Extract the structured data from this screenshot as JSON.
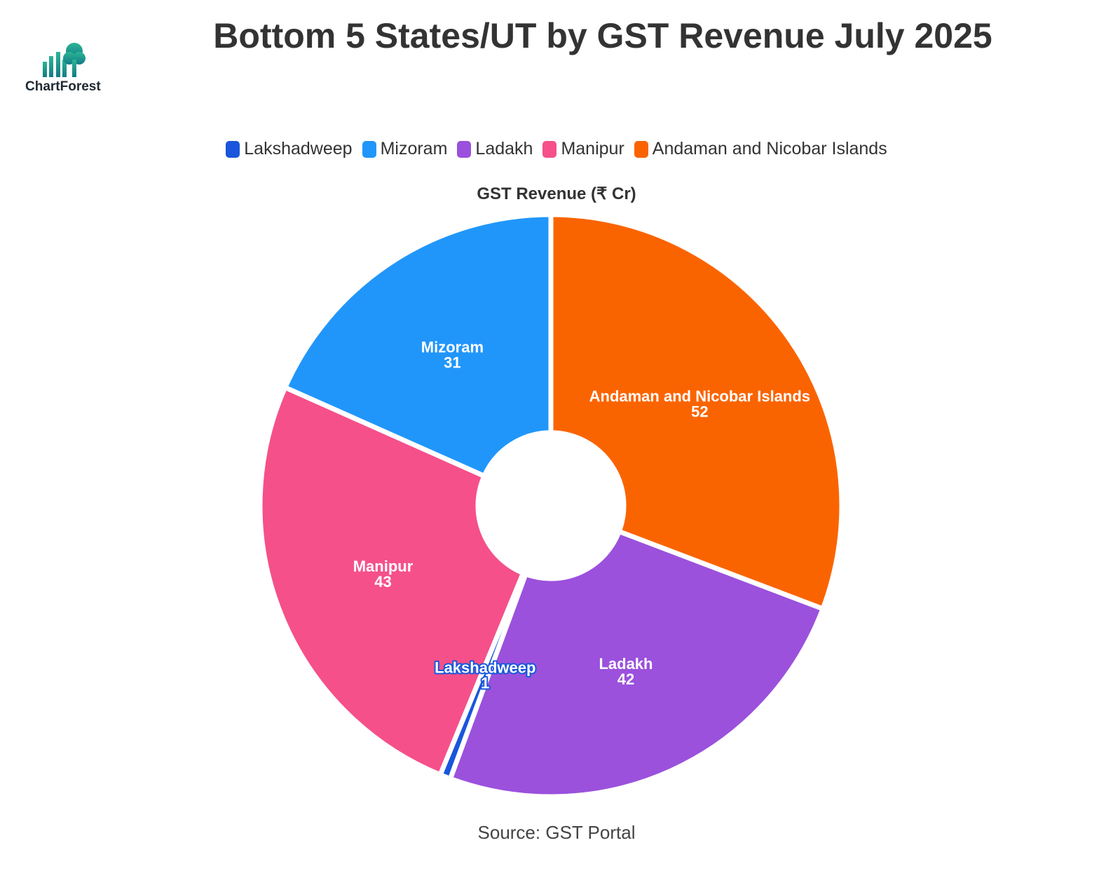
{
  "title": "Bottom 5 States/UT by GST Revenue July 2025",
  "logo": {
    "text": "ChartForest",
    "icon": "bar-chart-tree-logo"
  },
  "source": "Source: GST Portal",
  "chart_data": {
    "type": "pie",
    "hole": true,
    "title": "GST Revenue (₹ Cr)",
    "legend_position": "top",
    "legend": [
      "Lakshadweep",
      "Mizoram",
      "Ladakh",
      "Manipur",
      "Andaman and Nicobar Islands"
    ],
    "slices": [
      {
        "label": "Andaman and Nicobar Islands",
        "value": 52,
        "color": "#fa6400"
      },
      {
        "label": "Ladakh",
        "value": 42,
        "color": "#9b51dc"
      },
      {
        "label": "Lakshadweep",
        "value": 1,
        "color": "#1a56db"
      },
      {
        "label": "Manipur",
        "value": 43,
        "color": "#f5508a"
      },
      {
        "label": "Mizoram",
        "value": 31,
        "color": "#2196fa"
      }
    ]
  }
}
